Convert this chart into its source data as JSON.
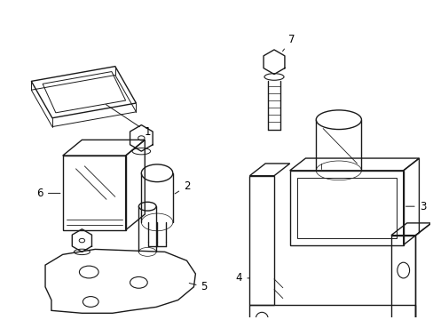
{
  "background_color": "#ffffff",
  "line_color": "#1a1a1a",
  "line_width": 1.0,
  "label_fontsize": 8.5,
  "fig_width": 4.89,
  "fig_height": 3.6
}
